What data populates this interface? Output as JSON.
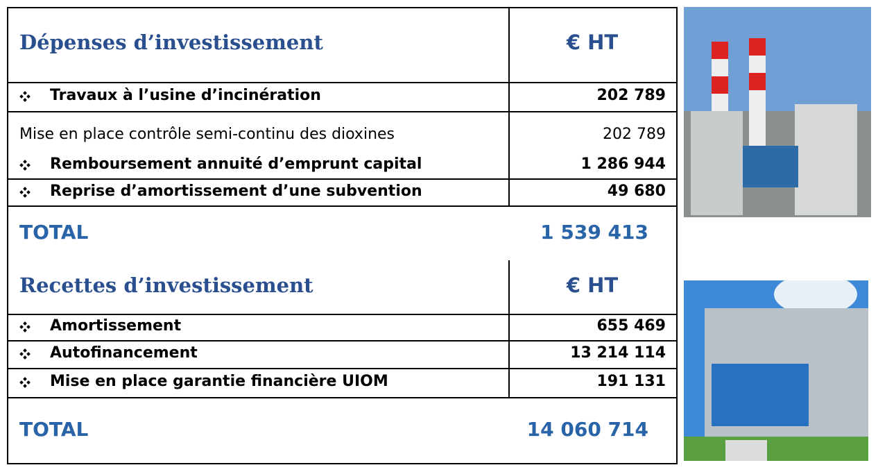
{
  "depenses": {
    "title": "Dépenses d’investissement",
    "unit": "€ HT",
    "rows": [
      {
        "label": "Travaux à l’usine d’incinération",
        "amount": "202 789"
      },
      {
        "label": "Mise en place contrôle semi-continu des dioxines",
        "amount": "202 789"
      },
      {
        "label": "Remboursement annuité d’emprunt capital",
        "amount": "1 286 944"
      },
      {
        "label": "Reprise d’amortissement d’une subvention",
        "amount": "49 680"
      }
    ],
    "total_label": "TOTAL",
    "total": "1 539 413"
  },
  "recettes": {
    "title": "Recettes d’investissement",
    "unit": "€ HT",
    "rows": [
      {
        "label": "Amortissement",
        "amount": "655 469"
      },
      {
        "label": "Autofinancement",
        "amount": "13 214 114"
      },
      {
        "label": "Mise en place garantie financière UIOM",
        "amount": "191 131"
      }
    ],
    "total_label": "TOTAL",
    "total": "14 060 714"
  }
}
